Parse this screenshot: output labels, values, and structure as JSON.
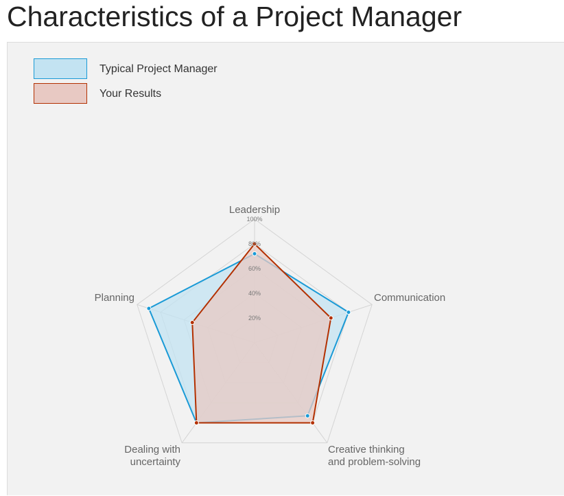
{
  "page": {
    "title": "Characteristics of a Project Manager"
  },
  "chart_data": {
    "type": "radar",
    "axes": [
      [
        "Leadership"
      ],
      [
        "Communication"
      ],
      [
        "Creative thinking",
        "and problem-solving"
      ],
      [
        "Dealing with",
        "uncertainty"
      ],
      [
        "Planning"
      ]
    ],
    "ticks": [
      "20%",
      "40%",
      "60%",
      "80%",
      "100%"
    ],
    "rmax": 100,
    "grid": true,
    "legend_position": "top-left",
    "series": [
      {
        "name": "Typical Project Manager",
        "values": [
          72,
          80,
          73,
          80,
          90
        ],
        "stroke": "#1a9ad6",
        "fill": "#c3e3f2"
      },
      {
        "name": "Your Results",
        "values": [
          80,
          65,
          80,
          80,
          53
        ],
        "stroke": "#b33000",
        "fill": "#e8c9c3"
      }
    ]
  }
}
